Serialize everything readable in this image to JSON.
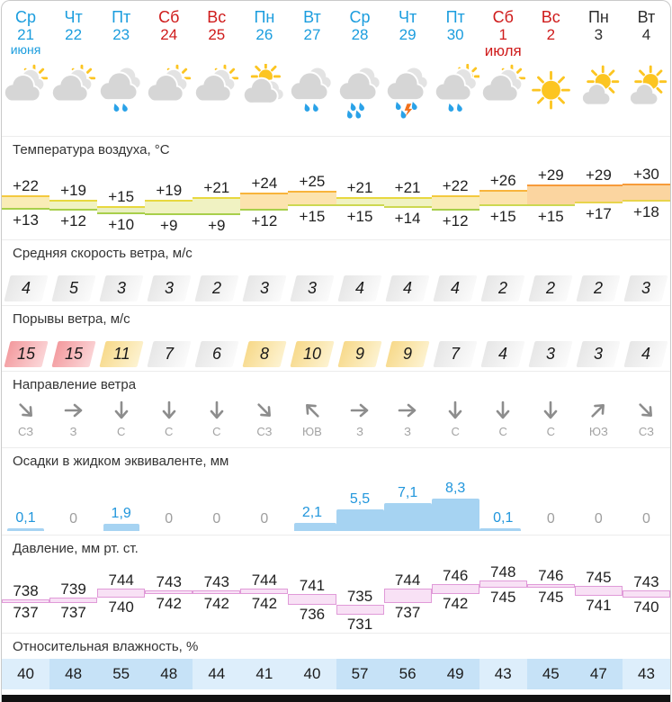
{
  "labels": {
    "temperature": "Температура воздуха, °C",
    "wind_speed": "Средняя скорость ветра, м/с",
    "gusts": "Порывы ветра, м/с",
    "direction": "Направление ветра",
    "precipitation": "Осадки в жидком эквиваленте, мм",
    "pressure": "Давление, мм рт. ст.",
    "humidity": "Относительная влажность, %"
  },
  "colors": {
    "accent_blue": "#1b9dde",
    "weekend_red": "#cf1b1b",
    "neutral_dark": "#2e2e2e",
    "precip_bar": "#a6d3f2",
    "precip_value_text": "#2196dc",
    "precip_zero_text": "#9e9e9e",
    "pressure_fill": "#f8e1f5",
    "pressure_border": "#e09ad8",
    "humidity_light": "#ddeefb",
    "humidity_dark": "#c6e2f7",
    "gust_levels": {
      "gray": [
        "#e6e6e6",
        "#fbfbfb"
      ],
      "yellow": [
        "#f7d98a",
        "#fdf3d2"
      ],
      "red": [
        "#f39a9e",
        "#fbd7d9"
      ]
    },
    "temp_fills": {
      "hot": "#fbd5a0",
      "warm": "#fce3ae",
      "mild": "#f9ecb6",
      "cool": "#f0f2c2",
      "cold": "#e9efc2"
    },
    "temp_top": {
      "hot": "#f79b3a",
      "warm": "#f8b43c",
      "mild": "#f4c93e",
      "cool": "#e8d83f"
    },
    "temp_bottom": {
      "warm": "#e8d44c",
      "mild": "#cdd852",
      "cool": "#a8cf4b"
    }
  },
  "columns": [
    {
      "day": "Ср",
      "date": "21",
      "month": "июня",
      "color": "blue",
      "icon": "partly-cloudy",
      "tmax": 22,
      "tmin": 13,
      "tmax_label": "+22",
      "tmin_label": "+13",
      "wind": "4",
      "gust": "15",
      "gust_level": "red",
      "dir": "СЗ",
      "arrow_deg": 45,
      "precip": 0.1,
      "precip_label": "0,1",
      "pmax": 738,
      "pmin": 737,
      "humidity": 40
    },
    {
      "day": "Чт",
      "date": "22",
      "color": "blue",
      "icon": "partly-cloudy",
      "tmax": 19,
      "tmin": 12,
      "tmax_label": "+19",
      "tmin_label": "+12",
      "wind": "5",
      "gust": "15",
      "gust_level": "red",
      "dir": "З",
      "arrow_deg": 0,
      "precip": 0,
      "precip_label": "0",
      "pmax": 739,
      "pmin": 737,
      "humidity": 48
    },
    {
      "day": "Пт",
      "date": "23",
      "color": "blue",
      "icon": "cloudy-rain",
      "tmax": 15,
      "tmin": 10,
      "tmax_label": "+15",
      "tmin_label": "+10",
      "wind": "3",
      "gust": "11",
      "gust_level": "yellow",
      "dir": "С",
      "arrow_deg": 90,
      "precip": 1.9,
      "precip_label": "1,9",
      "pmax": 744,
      "pmin": 740,
      "humidity": 55
    },
    {
      "day": "Сб",
      "date": "24",
      "color": "red",
      "icon": "partly-cloudy",
      "tmax": 19,
      "tmin": 9,
      "tmax_label": "+19",
      "tmin_label": "+9",
      "wind": "3",
      "gust": "7",
      "gust_level": "gray",
      "dir": "С",
      "arrow_deg": 90,
      "precip": 0,
      "precip_label": "0",
      "pmax": 743,
      "pmin": 742,
      "humidity": 48
    },
    {
      "day": "Вс",
      "date": "25",
      "color": "red",
      "icon": "partly-cloudy",
      "tmax": 21,
      "tmin": 9,
      "tmax_label": "+21",
      "tmin_label": "+9",
      "wind": "2",
      "gust": "6",
      "gust_level": "gray",
      "dir": "С",
      "arrow_deg": 90,
      "precip": 0,
      "precip_label": "0",
      "pmax": 743,
      "pmin": 742,
      "humidity": 44
    },
    {
      "day": "Пн",
      "date": "26",
      "color": "blue",
      "icon": "sun-clouds",
      "tmax": 24,
      "tmin": 12,
      "tmax_label": "+24",
      "tmin_label": "+12",
      "wind": "3",
      "gust": "8",
      "gust_level": "yellow",
      "dir": "СЗ",
      "arrow_deg": 45,
      "precip": 0,
      "precip_label": "0",
      "pmax": 744,
      "pmin": 742,
      "humidity": 41
    },
    {
      "day": "Вт",
      "date": "27",
      "color": "blue",
      "icon": "cloudy-rain",
      "tmax": 25,
      "tmin": 15,
      "tmax_label": "+25",
      "tmin_label": "+15",
      "wind": "3",
      "gust": "10",
      "gust_level": "yellow",
      "dir": "ЮВ",
      "arrow_deg": 225,
      "precip": 2.1,
      "precip_label": "2,1",
      "pmax": 741,
      "pmin": 736,
      "humidity": 40
    },
    {
      "day": "Ср",
      "date": "28",
      "color": "blue",
      "icon": "rain-heavy",
      "tmax": 21,
      "tmin": 15,
      "tmax_label": "+21",
      "tmin_label": "+15",
      "wind": "4",
      "gust": "9",
      "gust_level": "yellow",
      "dir": "З",
      "arrow_deg": 0,
      "precip": 5.5,
      "precip_label": "5,5",
      "pmax": 735,
      "pmin": 731,
      "humidity": 57
    },
    {
      "day": "Чт",
      "date": "29",
      "color": "blue",
      "icon": "thunderstorm",
      "tmax": 21,
      "tmin": 14,
      "tmax_label": "+21",
      "tmin_label": "+14",
      "wind": "4",
      "gust": "9",
      "gust_level": "yellow",
      "dir": "З",
      "arrow_deg": 0,
      "precip": 7.1,
      "precip_label": "7,1",
      "pmax": 744,
      "pmin": 737,
      "humidity": 56
    },
    {
      "day": "Пт",
      "date": "30",
      "color": "blue",
      "icon": "sun-rain",
      "tmax": 22,
      "tmin": 12,
      "tmax_label": "+22",
      "tmin_label": "+12",
      "wind": "4",
      "gust": "7",
      "gust_level": "gray",
      "dir": "С",
      "arrow_deg": 90,
      "precip": 8.3,
      "precip_label": "8,3",
      "pmax": 746,
      "pmin": 742,
      "humidity": 49
    },
    {
      "day": "Сб",
      "date": "1 июля",
      "color": "red",
      "icon": "partly-cloudy",
      "tmax": 26,
      "tmin": 15,
      "tmax_label": "+26",
      "tmin_label": "+15",
      "wind": "2",
      "gust": "4",
      "gust_level": "gray",
      "dir": "С",
      "arrow_deg": 90,
      "precip": 0.1,
      "precip_label": "0,1",
      "pmax": 748,
      "pmin": 745,
      "humidity": 43
    },
    {
      "day": "Вс",
      "date": "2",
      "color": "red",
      "icon": "sunny",
      "tmax": 29,
      "tmin": 15,
      "tmax_label": "+29",
      "tmin_label": "+15",
      "wind": "2",
      "gust": "3",
      "gust_level": "gray",
      "dir": "С",
      "arrow_deg": 90,
      "precip": 0,
      "precip_label": "0",
      "pmax": 746,
      "pmin": 745,
      "humidity": 45
    },
    {
      "day": "Пн",
      "date": "3",
      "color": "dark",
      "icon": "mostly-sunny",
      "tmax": 29,
      "tmin": 17,
      "tmax_label": "+29",
      "tmin_label": "+17",
      "wind": "2",
      "gust": "3",
      "gust_level": "gray",
      "dir": "ЮЗ",
      "arrow_deg": 315,
      "precip": 0,
      "precip_label": "0",
      "pmax": 745,
      "pmin": 741,
      "humidity": 47
    },
    {
      "day": "Вт",
      "date": "4",
      "color": "dark",
      "icon": "mostly-sunny",
      "tmax": 30,
      "tmin": 18,
      "tmax_label": "+30",
      "tmin_label": "+18",
      "wind": "3",
      "gust": "4",
      "gust_level": "gray",
      "dir": "СЗ",
      "arrow_deg": 45,
      "precip": 0,
      "precip_label": "0",
      "pmax": 743,
      "pmin": 740,
      "humidity": 43
    }
  ]
}
